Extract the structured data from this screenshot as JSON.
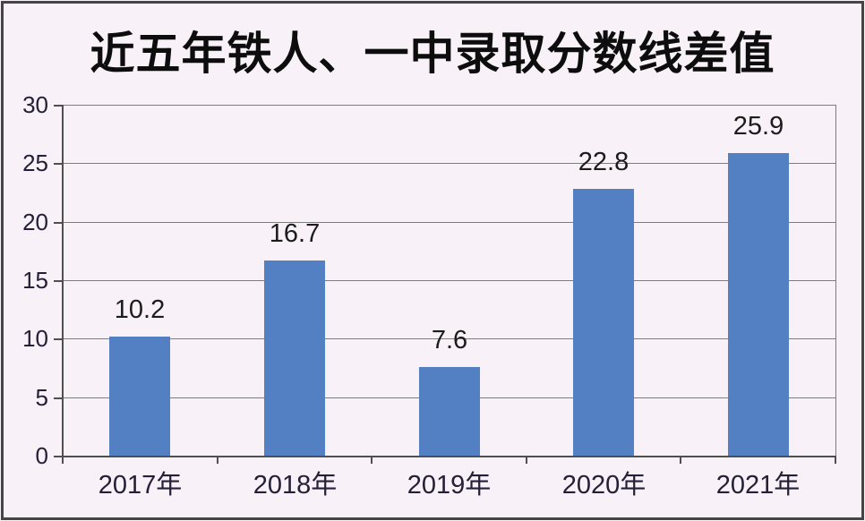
{
  "window": {
    "background_color": "#f8f1f7",
    "frame_color": "#454545"
  },
  "chart_data": {
    "type": "bar",
    "title": "近五年铁人、一中录取分数线差值",
    "categories": [
      "2017年",
      "2018年",
      "2019年",
      "2020年",
      "2021年"
    ],
    "values": [
      10.2,
      16.7,
      7.6,
      22.8,
      25.9
    ],
    "value_labels": [
      "10.2",
      "16.7",
      "7.6",
      "22.8",
      "25.9"
    ],
    "xlabel": "",
    "ylabel": "",
    "ylim": [
      0,
      30
    ],
    "yticks": [
      0,
      5,
      10,
      15,
      20,
      25,
      30
    ],
    "ytick_labels": [
      "0",
      "5",
      "10",
      "15",
      "20",
      "25",
      "30"
    ],
    "grid": true,
    "legend_position": "none",
    "bar_color": "#5280c2",
    "gridline_color": "#7d7d7d",
    "axis_color": "#4f4f4f",
    "tick_label_color": "#232038",
    "value_label_color": "#1c1c1c",
    "title_color": "#0d0d0d"
  }
}
